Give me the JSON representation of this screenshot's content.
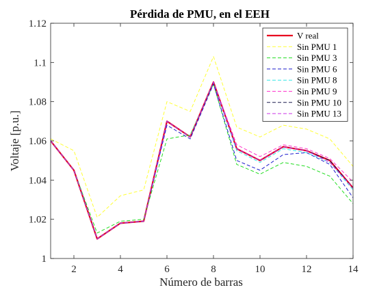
{
  "chart_data": {
    "type": "line",
    "title": "Pérdida de PMU, en el EEH",
    "xlabel": "Número de barras",
    "ylabel": "Voltaje [p.u.]",
    "xlim": [
      1,
      14
    ],
    "ylim": [
      1,
      1.12
    ],
    "xticks": [
      2,
      4,
      6,
      8,
      10,
      12,
      14
    ],
    "yticks": [
      1,
      1.02,
      1.04,
      1.06,
      1.08,
      1.1,
      1.12
    ],
    "ytick_labels": [
      "1",
      "1.02",
      "1.04",
      "1.06",
      "1.08",
      "1.1",
      "1.12"
    ],
    "grid": false,
    "legend_position": "top-right",
    "x": [
      1,
      2,
      3,
      4,
      5,
      6,
      7,
      8,
      9,
      10,
      11,
      12,
      13,
      14
    ],
    "series": [
      {
        "name": "V real",
        "color": "#e8001f",
        "dash": "solid",
        "width": 2.2,
        "values": [
          1.06,
          1.045,
          1.01,
          1.018,
          1.019,
          1.07,
          1.062,
          1.09,
          1.056,
          1.05,
          1.057,
          1.055,
          1.05,
          1.036
        ]
      },
      {
        "name": "Sin PMU 1",
        "color": "#ffff33",
        "dash": "dashed",
        "width": 1,
        "values": [
          1.061,
          1.055,
          1.021,
          1.032,
          1.035,
          1.08,
          1.075,
          1.103,
          1.067,
          1.062,
          1.068,
          1.066,
          1.061,
          1.047
        ]
      },
      {
        "name": "Sin PMU 3",
        "color": "#22dd22",
        "dash": "dashed",
        "width": 1,
        "values": [
          1.06,
          1.045,
          1.013,
          1.019,
          1.02,
          1.061,
          1.063,
          1.089,
          1.048,
          1.043,
          1.049,
          1.047,
          1.042,
          1.028
        ]
      },
      {
        "name": "Sin PMU 6",
        "color": "#1a1acc",
        "dash": "dashed",
        "width": 1,
        "values": [
          1.06,
          1.045,
          1.01,
          1.018,
          1.019,
          1.068,
          1.061,
          1.089,
          1.05,
          1.045,
          1.053,
          1.054,
          1.048,
          1.031
        ]
      },
      {
        "name": "Sin PMU 8",
        "color": "#33e6e6",
        "dash": "dashed",
        "width": 1,
        "values": [
          1.06,
          1.045,
          1.01,
          1.018,
          1.019,
          1.07,
          1.062,
          1.09,
          1.055,
          1.049,
          1.056,
          1.054,
          1.049,
          1.035
        ]
      },
      {
        "name": "Sin PMU 9",
        "color": "#ff33cc",
        "dash": "dashed",
        "width": 1,
        "values": [
          1.06,
          1.045,
          1.01,
          1.018,
          1.019,
          1.07,
          1.062,
          1.09,
          1.058,
          1.052,
          1.058,
          1.056,
          1.051,
          1.039
        ]
      },
      {
        "name": "Sin PMU 10",
        "color": "#1a1a4d",
        "dash": "dashed",
        "width": 1,
        "values": [
          1.06,
          1.045,
          1.01,
          1.018,
          1.019,
          1.07,
          1.062,
          1.09,
          1.056,
          1.05,
          1.057,
          1.055,
          1.05,
          1.036
        ]
      },
      {
        "name": "Sin PMU 13",
        "color": "#cc33e6",
        "dash": "dashed",
        "width": 1,
        "values": [
          1.06,
          1.045,
          1.01,
          1.018,
          1.019,
          1.07,
          1.062,
          1.09,
          1.056,
          1.05,
          1.057,
          1.055,
          1.049,
          1.036
        ]
      }
    ]
  }
}
